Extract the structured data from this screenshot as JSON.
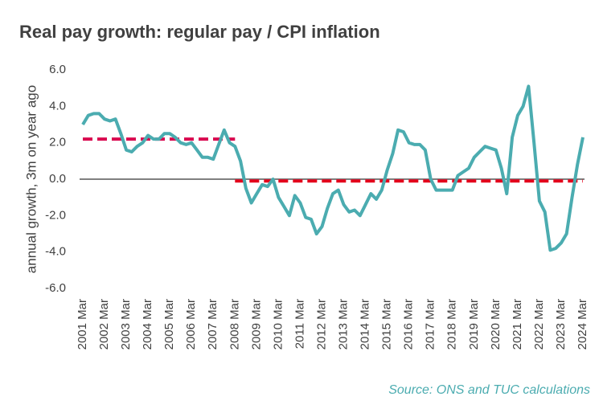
{
  "chart_data": {
    "type": "line",
    "title": "Real pay growth: regular pay / CPI inflation",
    "y_label": "annual growth, 3m on year ago",
    "source": "Source: ONS and TUC calculations",
    "x": [
      "2001 Mar",
      "2001 Jun",
      "2001 Sep",
      "2001 Dec",
      "2002 Mar",
      "2002 Jun",
      "2002 Sep",
      "2002 Dec",
      "2003 Mar",
      "2003 Jun",
      "2003 Sep",
      "2003 Dec",
      "2004 Mar",
      "2004 Jun",
      "2004 Sep",
      "2004 Dec",
      "2005 Mar",
      "2005 Jun",
      "2005 Sep",
      "2005 Dec",
      "2006 Mar",
      "2006 Jun",
      "2006 Sep",
      "2006 Dec",
      "2007 Mar",
      "2007 Jun",
      "2007 Sep",
      "2007 Dec",
      "2008 Mar",
      "2008 Jun",
      "2008 Sep",
      "2008 Dec",
      "2009 Mar",
      "2009 Jun",
      "2009 Sep",
      "2009 Dec",
      "2010 Mar",
      "2010 Jun",
      "2010 Sep",
      "2010 Dec",
      "2011 Mar",
      "2011 Jun",
      "2011 Sep",
      "2011 Dec",
      "2012 Mar",
      "2012 Jun",
      "2012 Sep",
      "2012 Dec",
      "2013 Mar",
      "2013 Jun",
      "2013 Sep",
      "2013 Dec",
      "2014 Mar",
      "2014 Jun",
      "2014 Sep",
      "2014 Dec",
      "2015 Mar",
      "2015 Jun",
      "2015 Sep",
      "2015 Dec",
      "2016 Mar",
      "2016 Jun",
      "2016 Sep",
      "2016 Dec",
      "2017 Mar",
      "2017 Jun",
      "2017 Sep",
      "2017 Dec",
      "2018 Mar",
      "2018 Jun",
      "2018 Sep",
      "2018 Dec",
      "2019 Mar",
      "2019 Jun",
      "2019 Sep",
      "2019 Dec",
      "2020 Mar",
      "2020 Jun",
      "2020 Sep",
      "2020 Dec",
      "2021 Mar",
      "2021 Jun",
      "2021 Sep",
      "2021 Dec",
      "2022 Mar",
      "2022 Jun",
      "2022 Sep",
      "2022 Dec",
      "2023 Mar",
      "2023 Jun",
      "2023 Sep",
      "2023 Dec",
      "2024 Mar"
    ],
    "series": [
      {
        "color": "#4bacb0",
        "values": [
          3.0,
          3.5,
          3.6,
          3.6,
          3.3,
          3.2,
          3.3,
          2.5,
          1.6,
          1.5,
          1.8,
          2.0,
          2.4,
          2.2,
          2.2,
          2.5,
          2.5,
          2.3,
          2.0,
          1.9,
          2.0,
          1.6,
          1.2,
          1.2,
          1.1,
          1.9,
          2.7,
          2.0,
          1.8,
          1.0,
          -0.5,
          -1.3,
          -0.8,
          -0.3,
          -0.4,
          0.0,
          -1.0,
          -1.5,
          -2.0,
          -0.9,
          -1.3,
          -2.1,
          -2.2,
          -3.0,
          -2.6,
          -1.6,
          -0.8,
          -0.6,
          -1.4,
          -1.8,
          -1.7,
          -2.0,
          -1.4,
          -0.8,
          -1.1,
          -0.6,
          0.5,
          1.4,
          2.7,
          2.6,
          2.0,
          1.9,
          1.9,
          1.6,
          0.0,
          -0.6,
          -0.6,
          -0.6,
          -0.6,
          0.2,
          0.4,
          0.6,
          1.2,
          1.5,
          1.8,
          1.7,
          1.6,
          0.6,
          -0.8,
          2.3,
          3.5,
          4.0,
          5.1,
          2.0,
          -1.2,
          -1.8,
          -3.9,
          -3.8,
          -3.5,
          -3.0,
          -1.0,
          0.8,
          2.3
        ]
      }
    ],
    "reference_lines": [
      {
        "from": "2001 Mar",
        "to": "2008 Mar",
        "value": 2.2,
        "color": "#d9084f"
      },
      {
        "from": "2008 Mar",
        "to": "2024 Mar",
        "value": -0.1,
        "color": "#e3001b"
      }
    ],
    "xticks": [
      "2001 Mar",
      "2002 Mar",
      "2003 Mar",
      "2004 Mar",
      "2005 Mar",
      "2006 Mar",
      "2007 Mar",
      "2008 Mar",
      "2009 Mar",
      "2010 Mar",
      "2011 Mar",
      "2012 Mar",
      "2013 Mar",
      "2014 Mar",
      "2015 Mar",
      "2016 Mar",
      "2017 Mar",
      "2018 Mar",
      "2019 Mar",
      "2020 Mar",
      "2021 Mar",
      "2022 Mar",
      "2023 Mar",
      "2024 Mar"
    ],
    "ylim": [
      -6,
      6
    ],
    "yticks": [
      {
        "value": -6,
        "label": "-6.0"
      },
      {
        "value": -4,
        "label": "-4.0"
      },
      {
        "value": -2,
        "label": "-2.0"
      },
      {
        "value": 0,
        "label": "0.0"
      },
      {
        "value": 2,
        "label": "2.0"
      },
      {
        "value": 4,
        "label": "4.0"
      },
      {
        "value": 6,
        "label": "6.0"
      }
    ],
    "grid": false
  }
}
